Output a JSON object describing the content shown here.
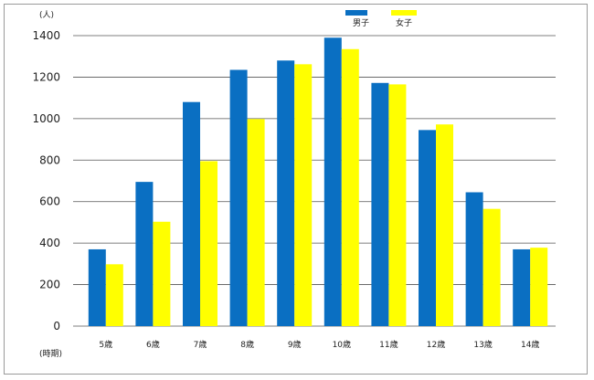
{
  "chart_data": {
    "type": "bar",
    "title": "",
    "ylabel": "(人)",
    "xlabel": "(時期)",
    "ylim": [
      0,
      1400
    ],
    "yticks": [
      0,
      200,
      400,
      600,
      800,
      1000,
      1200,
      1400
    ],
    "grid": true,
    "legend_position": "top-right",
    "categories": [
      "5歳",
      "6歳",
      "7歳",
      "8歳",
      "9歳",
      "10歳",
      "11歳",
      "12歳",
      "13歳",
      "14歳"
    ],
    "series": [
      {
        "name": "男子",
        "color": "#0a6fc2",
        "values": [
          370,
          695,
          1080,
          1235,
          1280,
          1390,
          1172,
          945,
          645,
          370
        ]
      },
      {
        "name": "女子",
        "color": "#ffff00",
        "values": [
          298,
          503,
          795,
          998,
          1262,
          1335,
          1165,
          972,
          565,
          378
        ]
      }
    ],
    "gridline_color": "#555555"
  }
}
